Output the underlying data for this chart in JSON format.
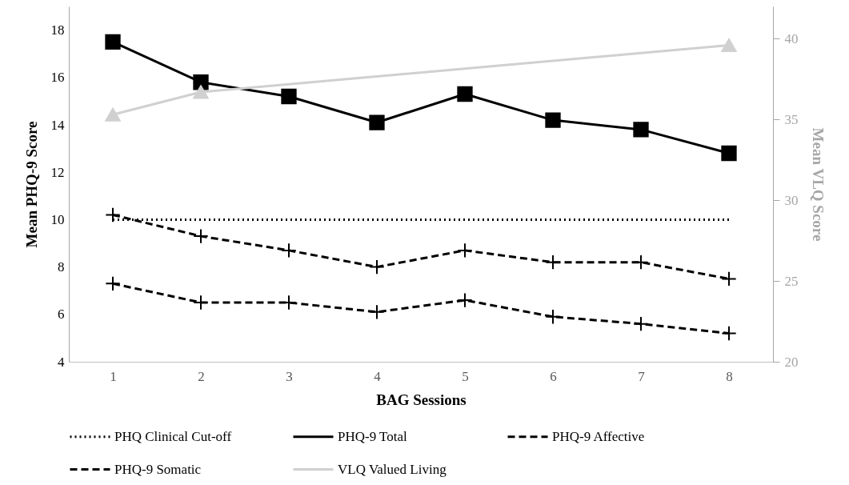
{
  "chart_data": {
    "type": "line",
    "xlabel": "BAG Sessions",
    "ylabel": "Mean PHQ-9 Score",
    "y2label": "Mean VLQ Score",
    "x": [
      1,
      2,
      3,
      4,
      5,
      6,
      7,
      8
    ],
    "xlim": [
      0.5,
      8.5
    ],
    "xticks": [
      1,
      2,
      3,
      4,
      5,
      6,
      7,
      8
    ],
    "ylim": [
      4,
      19
    ],
    "yticks": [
      4,
      6,
      8,
      10,
      12,
      14,
      16,
      18
    ],
    "y2lim": [
      20,
      42
    ],
    "y2ticks": [
      20,
      25,
      30,
      35,
      40
    ],
    "legend": "bottom",
    "series": [
      {
        "name": "PHQ Clinical Cut-off",
        "color": "#000000",
        "marker": "none",
        "line_style": "dotted",
        "values": [
          10,
          10,
          10,
          10,
          10,
          10,
          10,
          10
        ]
      },
      {
        "name": "PHQ-9 Total",
        "color": "#000000",
        "marker": "square",
        "line_style": "solid",
        "values": [
          17.5,
          15.8,
          15.2,
          14.1,
          15.3,
          14.2,
          13.8,
          12.8
        ]
      },
      {
        "name": "PHQ-9 Affective",
        "color": "#000000",
        "marker": "cross",
        "line_style": "dashed",
        "values": [
          7.3,
          6.5,
          6.5,
          6.1,
          6.6,
          5.9,
          5.6,
          5.2
        ]
      },
      {
        "name": "PHQ-9 Somatic",
        "color": "#000000",
        "marker": "cross",
        "line_style": "dashed",
        "values": [
          10.2,
          9.3,
          8.7,
          8.0,
          8.7,
          8.2,
          8.2,
          7.5
        ]
      },
      {
        "name": "VLQ Valued Living",
        "color": "#d0d0d0",
        "marker": "triangle",
        "line_style": "solid",
        "axis": "y2",
        "x": [
          1,
          2,
          8
        ],
        "values": [
          35.3,
          36.7,
          39.6
        ]
      }
    ]
  }
}
